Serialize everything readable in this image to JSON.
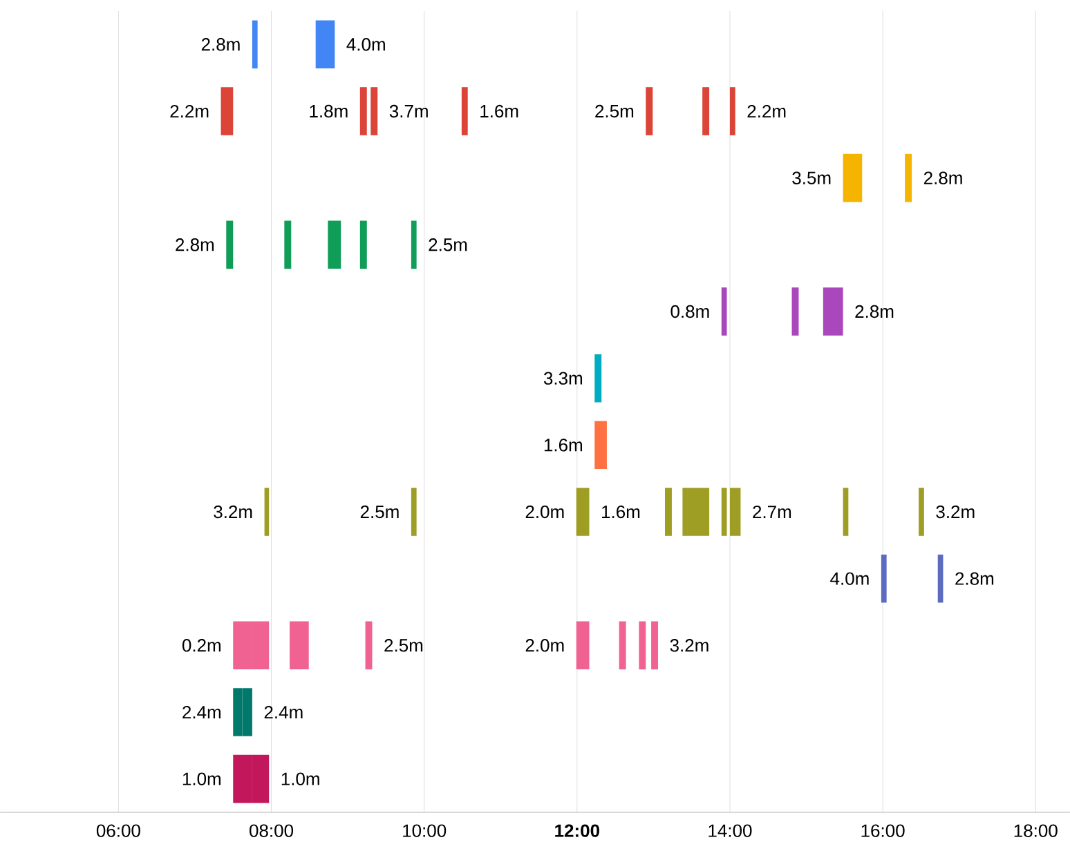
{
  "chart_data": {
    "type": "bar",
    "orientation": "horizontal",
    "grid": "x",
    "categories": [
      null,
      null,
      null,
      null,
      null,
      null,
      null,
      null,
      null,
      null,
      null,
      null
    ],
    "xlim": [
      4.45,
      18.45
    ],
    "xticks": [
      {
        "value": 6,
        "label": "06:00"
      },
      {
        "value": 8,
        "label": "08:00"
      },
      {
        "value": 10,
        "label": "10:00"
      },
      {
        "value": 12,
        "label": "**12:00**"
      },
      {
        "value": 14,
        "label": "14:00"
      },
      {
        "value": 16,
        "label": "16:00"
      },
      {
        "value": 18,
        "label": "18:00"
      }
    ],
    "series": [
      {
        "base": [
          7.75,
          7.34,
          15.48,
          7.41,
          13.89,
          12.23,
          12.23,
          7.91,
          15.98,
          7.5,
          7.5,
          7.5
        ],
        "values": [
          0.07,
          0.16,
          0.25,
          0.09,
          0.07,
          0.09,
          0.16,
          0.06,
          0.07,
          0.25,
          0.12,
          0.25
        ],
        "colors": [
          "#4285f4",
          "#db4437",
          "#f4b400",
          "#0f9d58",
          "#ab47bc",
          "#00acc1",
          "#ff7043",
          "#9e9d24",
          "#5c6bc0",
          "#f06292",
          "#00796b",
          "#c2185b"
        ]
      },
      {
        "base": [
          8.58,
          9.16,
          16.29,
          8.17,
          14.81,
          null,
          null,
          9.83,
          16.72,
          7.75,
          7.62,
          7.75
        ],
        "values": [
          0.25,
          0.09,
          0.09,
          0.09,
          0.09,
          null,
          null,
          0.07,
          0.07,
          0.22,
          0.13,
          0.22
        ],
        "colors": [
          "#4285f4",
          "#db4437",
          "#f4b400",
          "#0f9d58",
          "#ab47bc",
          null,
          null,
          "#9e9d24",
          "#5c6bc0",
          "#f06292",
          "#00796b",
          "#c2185b"
        ]
      },
      {
        "base": [
          null,
          9.3,
          null,
          8.74,
          15.22,
          null,
          null,
          11.99,
          null,
          8.24,
          null,
          null
        ],
        "values": [
          null,
          0.09,
          null,
          0.17,
          0.26,
          null,
          null,
          0.17,
          null,
          0.25,
          null,
          null
        ],
        "colors": [
          null,
          "#db4437",
          null,
          "#0f9d58",
          "#ab47bc",
          null,
          null,
          "#9e9d24",
          null,
          "#f06292",
          null,
          null
        ]
      },
      {
        "base": [
          null,
          10.49,
          null,
          9.16,
          null,
          null,
          null,
          13.15,
          null,
          9.23,
          null,
          null
        ],
        "values": [
          null,
          0.08,
          null,
          0.09,
          null,
          null,
          null,
          0.09,
          null,
          0.09,
          null,
          null
        ],
        "colors": [
          null,
          "#db4437",
          null,
          "#0f9d58",
          null,
          null,
          null,
          "#9e9d24",
          null,
          "#f06292",
          null,
          null
        ]
      },
      {
        "base": [
          null,
          12.9,
          null,
          9.83,
          null,
          null,
          null,
          13.38,
          null,
          11.99,
          null,
          null
        ],
        "values": [
          null,
          0.09,
          null,
          0.07,
          null,
          null,
          null,
          0.06,
          null,
          0.17,
          null,
          null
        ],
        "colors": [
          null,
          "#db4437",
          null,
          "#0f9d58",
          null,
          null,
          null,
          "#9e9d24",
          null,
          "#f06292",
          null,
          null
        ]
      },
      {
        "base": [
          null,
          13.64,
          null,
          null,
          null,
          null,
          null,
          13.44,
          null,
          12.55,
          null,
          null
        ],
        "values": [
          null,
          0.09,
          null,
          null,
          null,
          null,
          null,
          0.29,
          null,
          0.09,
          null,
          null
        ],
        "colors": [
          null,
          "#db4437",
          null,
          null,
          null,
          null,
          null,
          "#9e9d24",
          null,
          "#f06292",
          null,
          null
        ]
      },
      {
        "base": [
          null,
          14.0,
          null,
          null,
          null,
          null,
          null,
          13.89,
          null,
          12.81,
          null,
          null
        ],
        "values": [
          null,
          0.07,
          null,
          null,
          null,
          null,
          null,
          0.07,
          null,
          0.09,
          null,
          null
        ],
        "colors": [
          null,
          "#db4437",
          null,
          null,
          null,
          null,
          null,
          "#9e9d24",
          null,
          "#f06292",
          null,
          null
        ]
      },
      {
        "base": [
          null,
          null,
          null,
          null,
          null,
          null,
          null,
          14.0,
          null,
          12.97,
          null,
          null
        ],
        "values": [
          null,
          null,
          null,
          null,
          null,
          null,
          null,
          0.14,
          null,
          0.09,
          null,
          null
        ],
        "colors": [
          null,
          null,
          null,
          null,
          null,
          null,
          null,
          "#9e9d24",
          null,
          "#f06292",
          null,
          null
        ]
      },
      {
        "base": [
          null,
          null,
          null,
          null,
          null,
          null,
          null,
          15.48,
          null,
          null,
          null,
          null
        ],
        "values": [
          null,
          null,
          null,
          null,
          null,
          null,
          null,
          0.07,
          null,
          null,
          null,
          null
        ],
        "colors": [
          null,
          null,
          null,
          null,
          null,
          null,
          null,
          "#9e9d24",
          null,
          null,
          null,
          null
        ]
      },
      {
        "base": [
          null,
          null,
          null,
          null,
          null,
          null,
          null,
          16.47,
          null,
          null,
          null,
          null
        ],
        "values": [
          null,
          null,
          null,
          null,
          null,
          null,
          null,
          0.07,
          null,
          null,
          null,
          null
        ],
        "colors": [
          null,
          null,
          null,
          null,
          null,
          null,
          null,
          "#9e9d24",
          null,
          null,
          null,
          null
        ]
      }
    ],
    "annotations": [
      {
        "text": "2.8m",
        "x": 7.75
      },
      {
        "text": "4.0m",
        "x": 8.83
      },
      {
        "text": "2.2m",
        "x": 7.34
      },
      {
        "text": "1.8m",
        "x": 9.16
      },
      {
        "text": "3.7m",
        "x": 9.39
      },
      {
        "text": "1.6m",
        "x": 10.57
      },
      {
        "text": "2.5m",
        "x": 12.9
      },
      {
        "text": "2.2m",
        "x": 14.07
      },
      {
        "text": "3.5m",
        "x": 15.48
      },
      {
        "text": "2.8m",
        "x": 16.38
      },
      {
        "text": "2.8m",
        "x": 7.41
      },
      {
        "text": "2.5m",
        "x": 9.9
      },
      {
        "text": "0.8m",
        "x": 13.89
      },
      {
        "text": "2.8m",
        "x": 15.48
      },
      {
        "text": "3.3m",
        "x": 12.23
      },
      {
        "text": "1.6m",
        "x": 12.23
      },
      {
        "text": "3.2m",
        "x": 7.91
      },
      {
        "text": "2.5m",
        "x": 9.83
      },
      {
        "text": "2.0m",
        "x": 11.99
      },
      {
        "text": "1.6m",
        "x": 12.16
      },
      {
        "text": "2.7m",
        "x": 14.14
      },
      {
        "text": "3.2m",
        "x": 16.54
      },
      {
        "text": "4.0m",
        "x": 15.98
      },
      {
        "text": "2.8m",
        "x": 16.79
      },
      {
        "text": "0.2m",
        "x": 7.5
      },
      {
        "text": "2.5m",
        "x": 9.32
      },
      {
        "text": "2.0m",
        "x": 11.99
      },
      {
        "text": "3.2m",
        "x": 13.06
      },
      {
        "text": "2.4m",
        "x": 7.5
      },
      {
        "text": "2.4m",
        "x": 7.75
      },
      {
        "text": "1.0m",
        "x": 7.5
      },
      {
        "text": "1.0m",
        "x": 7.97
      }
    ]
  }
}
